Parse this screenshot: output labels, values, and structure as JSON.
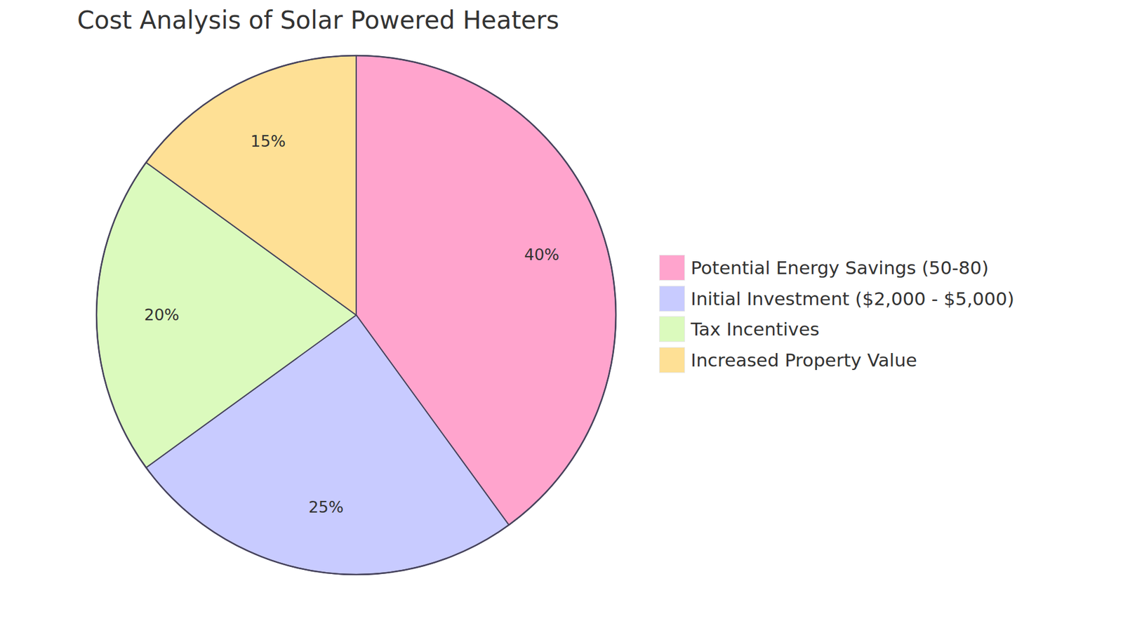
{
  "chart_data": {
    "type": "pie",
    "title": "Cost Analysis of Solar Powered Heaters",
    "categories": [
      "Potential Energy Savings (50-80)",
      "Initial Investment ($2,000 - $5,000)",
      "Tax Incentives",
      "Increased Property Value"
    ],
    "values": [
      40,
      25,
      20,
      15
    ],
    "value_labels": [
      "40%",
      "25%",
      "20%",
      "15%"
    ],
    "colors": [
      "#ffa4cd",
      "#c8cbff",
      "#dbfabd",
      "#fee095"
    ],
    "data_labels": true,
    "legend": "right"
  }
}
